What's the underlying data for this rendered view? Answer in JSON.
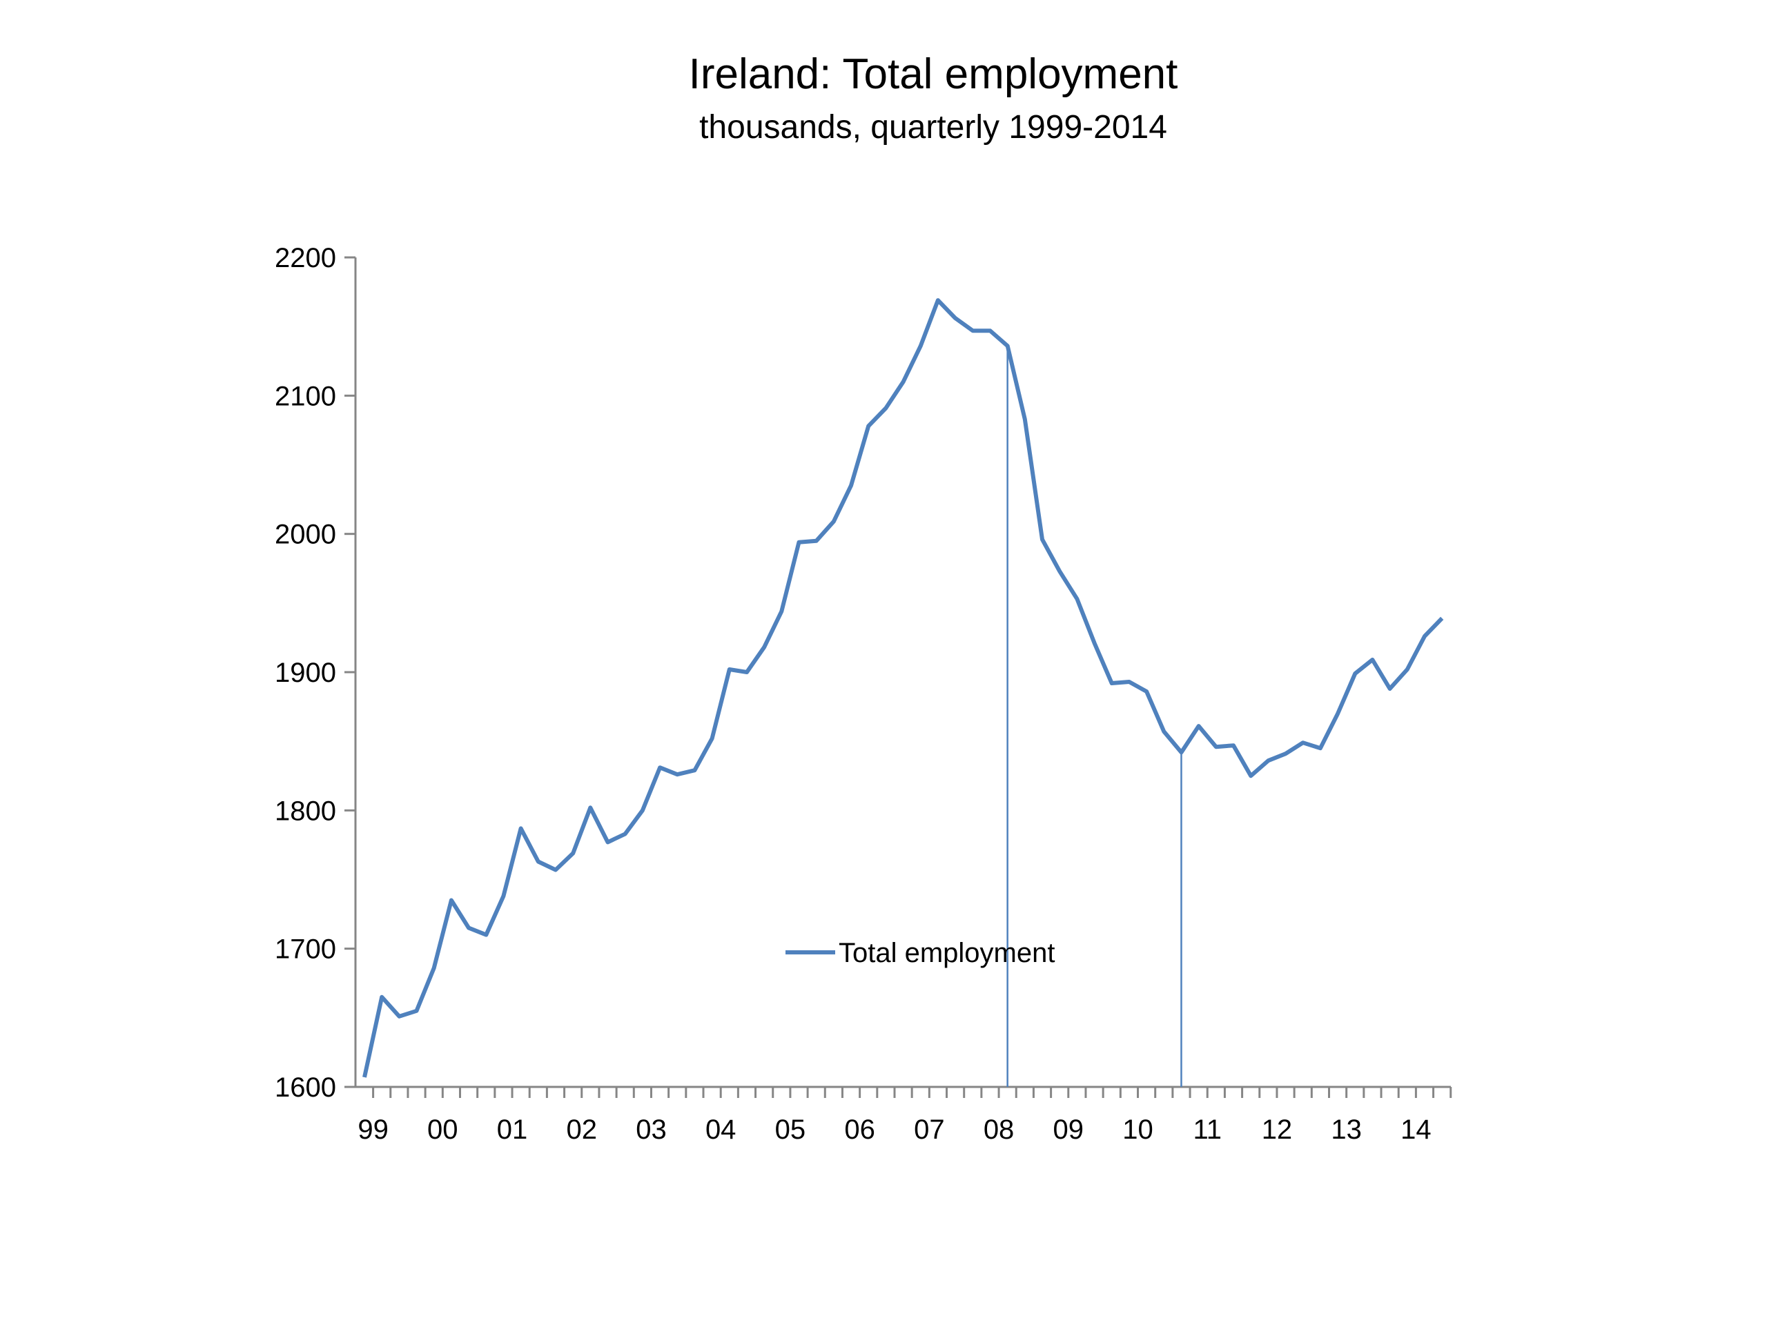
{
  "chart_data": {
    "type": "line",
    "title": "Ireland: Total employment",
    "subtitle": "thousands, quarterly 1999-2014",
    "xlabel": "",
    "ylabel": "",
    "ylim": [
      1600,
      2200
    ],
    "yticks": [
      1600,
      1700,
      1800,
      1900,
      2000,
      2100,
      2200
    ],
    "grid": false,
    "legend": "center",
    "x_tick_labels": [
      "99",
      "00",
      "01",
      "02",
      "03",
      "04",
      "05",
      "06",
      "07",
      "08",
      "09",
      "10",
      "11",
      "12",
      "13",
      "14"
    ],
    "quarters_per_label": 4,
    "x_start": "1999-Q1",
    "x_end": "2014-Q3",
    "series": [
      {
        "name": "Total employment",
        "color": "#4F81BD",
        "values": [
          1607,
          1665,
          1651,
          1655,
          1686,
          1735,
          1715,
          1710,
          1738,
          1787,
          1763,
          1757,
          1769,
          1802,
          1777,
          1783,
          1800,
          1831,
          1826,
          1829,
          1852,
          1902,
          1900,
          1918,
          1944,
          1994,
          1995,
          2009,
          2035,
          2078,
          2091,
          2110,
          2136,
          2169,
          2156,
          2147,
          2147,
          2136,
          2083,
          1996,
          1973,
          1953,
          1921,
          1892,
          1893,
          1886,
          1857,
          1842,
          1861,
          1846,
          1847,
          1825,
          1836,
          1841,
          1849,
          1845,
          1870,
          1899,
          1909,
          1888,
          1902,
          1926,
          1939
        ]
      }
    ],
    "reference_lines": [
      {
        "x": "2008-Q2",
        "color": "#4F81BD"
      },
      {
        "x": "2010-Q4",
        "color": "#4F81BD"
      }
    ]
  }
}
